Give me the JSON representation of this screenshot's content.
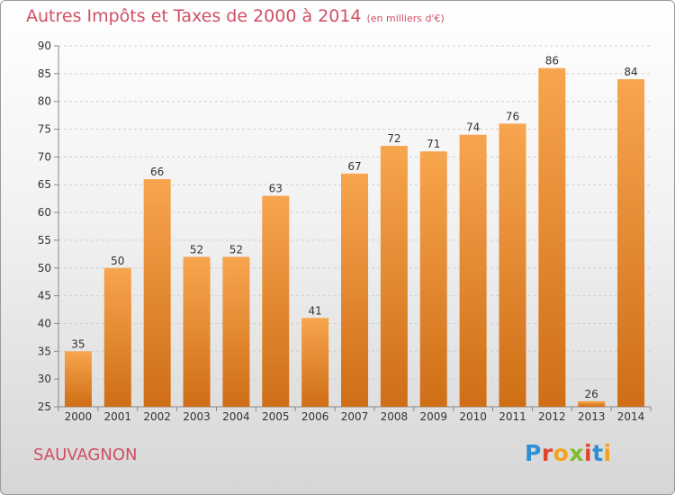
{
  "header": {
    "title": "Autres Impôts et Taxes de 2000 à 2014",
    "subtitle": "(en milliers d'€)"
  },
  "footer": {
    "commune": "SAUVAGNON",
    "logo_text": "Proxiti"
  },
  "colors": {
    "bar_light": "#f7a54e",
    "bar_dark": "#cf6e16",
    "title": "#d14f63"
  },
  "chart_data": {
    "type": "bar",
    "title": "Autres Impôts et Taxes de 2000 à 2014",
    "unit": "(en milliers d'€)",
    "categories": [
      "2000",
      "2001",
      "2002",
      "2003",
      "2004",
      "2005",
      "2006",
      "2007",
      "2008",
      "2009",
      "2010",
      "2011",
      "2012",
      "2013",
      "2014"
    ],
    "values": [
      35,
      50,
      66,
      52,
      52,
      63,
      41,
      67,
      72,
      71,
      74,
      76,
      86,
      26,
      84
    ],
    "ylim": [
      25,
      90
    ],
    "yticks": [
      25,
      30,
      35,
      40,
      45,
      50,
      55,
      60,
      65,
      70,
      75,
      80,
      85,
      90
    ],
    "grid": true
  }
}
